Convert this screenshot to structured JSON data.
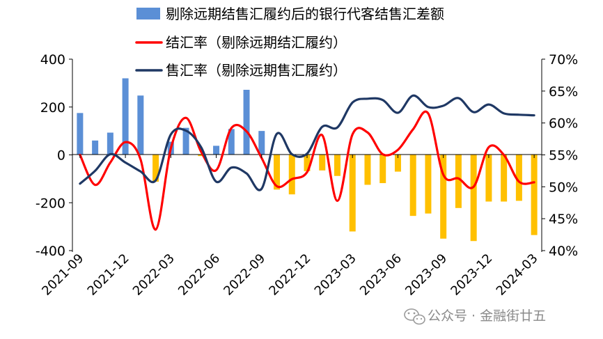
{
  "chart_data": {
    "type": "bar+line",
    "categories": [
      "2021-09",
      "2021-10",
      "2021-11",
      "2021-12",
      "2022-01",
      "2022-02",
      "2022-03",
      "2022-04",
      "2022-05",
      "2022-06",
      "2022-07",
      "2022-08",
      "2022-09",
      "2022-10",
      "2022-11",
      "2022-12",
      "2023-01",
      "2023-02",
      "2023-03",
      "2023-04",
      "2023-05",
      "2023-06",
      "2023-07",
      "2023-08",
      "2023-09",
      "2023-10",
      "2023-11",
      "2023-12",
      "2024-01",
      "2024-02",
      "2024-03"
    ],
    "x_tick_labels": [
      "2021-09",
      "2021-12",
      "2022-03",
      "2022-06",
      "2022-09",
      "2022-12",
      "2023-03",
      "2023-06",
      "2023-09",
      "2023-12",
      "2024-03"
    ],
    "y_left": {
      "ticks": [
        "400",
        "200",
        "0",
        "-200",
        "-400"
      ],
      "lim": [
        -400,
        400
      ]
    },
    "y_right": {
      "ticks": [
        "70%",
        "65%",
        "60%",
        "55%",
        "50%",
        "45%",
        "40%"
      ],
      "lim": [
        40,
        70
      ]
    },
    "bar_series": {
      "name": "剔除远期结售汇履约后的银行代客结售汇差额",
      "values": [
        175,
        60,
        93,
        320,
        248,
        -112,
        55,
        113,
        -5,
        38,
        108,
        272,
        100,
        -145,
        -165,
        -68,
        -65,
        -88,
        -320,
        -125,
        -118,
        -70,
        -255,
        -245,
        -350,
        -222,
        -360,
        -195,
        -195,
        -192,
        -335
      ],
      "positive_color": "#5b8fd6",
      "negative_color": "#ffc000"
    },
    "line_series": [
      {
        "name": "结汇率（剔除远期结汇履约）",
        "color": "#ff0000",
        "values": [
          55,
          50.3,
          53.8,
          57,
          54.3,
          43.3,
          56,
          60.8,
          55.5,
          52.6,
          59.2,
          58.7,
          54.5,
          50.1,
          51.2,
          52.3,
          58.1,
          47.8,
          58.2,
          58.5,
          55.1,
          55.8,
          59,
          61.5,
          51.9,
          51.3,
          50,
          56.2,
          55,
          50.8,
          50.7
        ]
      },
      {
        "name": "售汇率（剔除远期售汇履约）",
        "color": "#1f3864",
        "values": [
          50.5,
          52.5,
          55.1,
          53.8,
          52.4,
          51,
          58.2,
          58.8,
          56.2,
          50.8,
          53,
          52.1,
          49.7,
          58.3,
          55.1,
          55.2,
          59.4,
          59.3,
          63.2,
          63.8,
          63.6,
          61.6,
          64.3,
          62.5,
          62.7,
          63.9,
          61.7,
          62.9,
          61.5,
          61.3,
          61.2
        ]
      }
    ],
    "legend": [
      {
        "label": "剔除远期结售汇履约后的银行代客结售汇差额",
        "kind": "bar",
        "color": "#5b8fd6"
      },
      {
        "label": "结汇率（剔除远期结汇履约）",
        "kind": "line",
        "color": "#ff0000"
      },
      {
        "label": "售汇率（剔除远期售汇履约）",
        "kind": "line",
        "color": "#1f3864"
      }
    ],
    "legend_position": "top-center",
    "grid": false
  },
  "watermark": {
    "icon": "wechat-icon",
    "text": "公众号 · 金融街廿五"
  }
}
